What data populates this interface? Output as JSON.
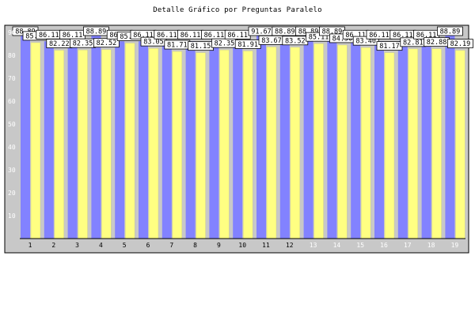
{
  "chart_data": {
    "type": "bar",
    "title": "Detalle Gráfico por Preguntas Paralelo",
    "categories": [
      "1",
      "2",
      "3",
      "4",
      "5",
      "6",
      "7",
      "8",
      "9",
      "10",
      "11",
      "12",
      "13",
      "14",
      "15",
      "16",
      "17",
      "18",
      "19"
    ],
    "series": [
      {
        "values": [
          88.89,
          86.11,
          86.11,
          88.89,
          86.11,
          86.11,
          86.11,
          86.11,
          86.11,
          86.11,
          91.67,
          88.89,
          88.89,
          88.89,
          86.11,
          86.11,
          86.11,
          86.11,
          88.89
        ]
      },
      {
        "values": [
          85.55,
          82.22,
          82.35,
          82.52,
          85.34,
          83.05,
          81.71,
          81.15,
          82.35,
          81.91,
          83.67,
          83.52,
          85.11,
          84.5,
          83.4,
          81.17,
          82.81,
          82.88,
          82.19
        ]
      }
    ],
    "ylim": [
      0,
      100
    ],
    "yticks": [
      10,
      20,
      30,
      40,
      50,
      60,
      70,
      80,
      90
    ],
    "grid": false,
    "colors": {
      "plot_bg": "#c8c8c8",
      "series_0": "#8282ff",
      "series_1": "#ffff82",
      "series_1_border": "#c8c89a",
      "axis_tick_text": "#ffffff",
      "xlabel_light": "#ffffff",
      "xlabel_dark": "#000000"
    }
  }
}
